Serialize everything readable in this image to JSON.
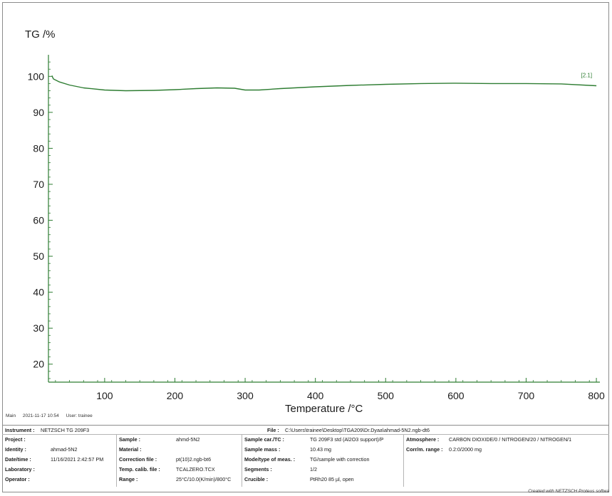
{
  "chart_data": {
    "type": "line",
    "ylabel": "TG /%",
    "xlabel": "Temperature /°C",
    "xlim": [
      20,
      805
    ],
    "ylim": [
      15,
      106
    ],
    "x_ticks": [
      100,
      200,
      300,
      400,
      500,
      600,
      700,
      800
    ],
    "y_ticks": [
      20,
      30,
      40,
      50,
      60,
      70,
      80,
      90,
      100
    ],
    "grid": false,
    "series": [
      {
        "name": "[2.1]",
        "color": "#2e7d32",
        "x": [
          25,
          27,
          35,
          50,
          70,
          100,
          130,
          170,
          200,
          230,
          260,
          285,
          300,
          320,
          350,
          400,
          450,
          500,
          550,
          600,
          650,
          700,
          750,
          800
        ],
        "y": [
          100.2,
          99.3,
          98.5,
          97.6,
          96.8,
          96.2,
          96.0,
          96.1,
          96.3,
          96.6,
          96.8,
          96.7,
          96.2,
          96.2,
          96.6,
          97.1,
          97.5,
          97.8,
          98.0,
          98.1,
          98.0,
          98.0,
          97.9,
          97.4
        ]
      }
    ]
  },
  "footer": {
    "main": "Main",
    "datetime": "2021-11-17 10:54",
    "user": "User: trainee"
  },
  "info": {
    "instrument_label": "Instrument :",
    "instrument_value": "NETZSCH TG 209F3",
    "file_label": "File :",
    "file_value": "C:\\Users\\trainee\\Desktop\\TGA209\\Dr.Dyaa\\ahmad-5N2.ngb-dt6",
    "project_label": "Project :",
    "project_value": "",
    "identity_label": "Identity :",
    "identity_value": "ahmad-5N2",
    "datetime_label": "Date/time :",
    "datetime_value": "11/16/2021 2:42:57 PM",
    "laboratory_label": "Laboratory :",
    "laboratory_value": "",
    "operator_label": "Operator :",
    "operator_value": "",
    "sample_label": "Sample :",
    "sample_value": "ahmd-5N2",
    "material_label": "Material :",
    "material_value": "",
    "correction_label": "Correction file :",
    "correction_value": "pt(10)2.ngb-bt6",
    "tempcalib_label": "Temp. calib. file :",
    "tempcalib_value": "TCALZERO.TCX",
    "range_label": "Range :",
    "range_value": "25°C/10.0(K/min)/800°C",
    "samplecar_label": "Sample car./TC :",
    "samplecar_value": "TG 209F3 std (Al2O3 support)/P",
    "samplemass_label": "Sample mass :",
    "samplemass_value": "10.43 mg",
    "mode_label": "Mode/type of meas. :",
    "mode_value": "TG/sample with correction",
    "segments_label": "Segments :",
    "segments_value": "1/2",
    "crucible_label": "Crucible :",
    "crucible_value": "PtRh20 85 µl, open",
    "atmosphere_label": "Atmosphere :",
    "atmosphere_value": "CARBON DIOXIDE/0 / NITROGEN/20 / NITROGEN/1",
    "corrrange_label": "Corr/m. range :",
    "corrrange_value": "0.2:0/2000 mg"
  },
  "credit": "Created with NETZSCH Proteus softwa"
}
